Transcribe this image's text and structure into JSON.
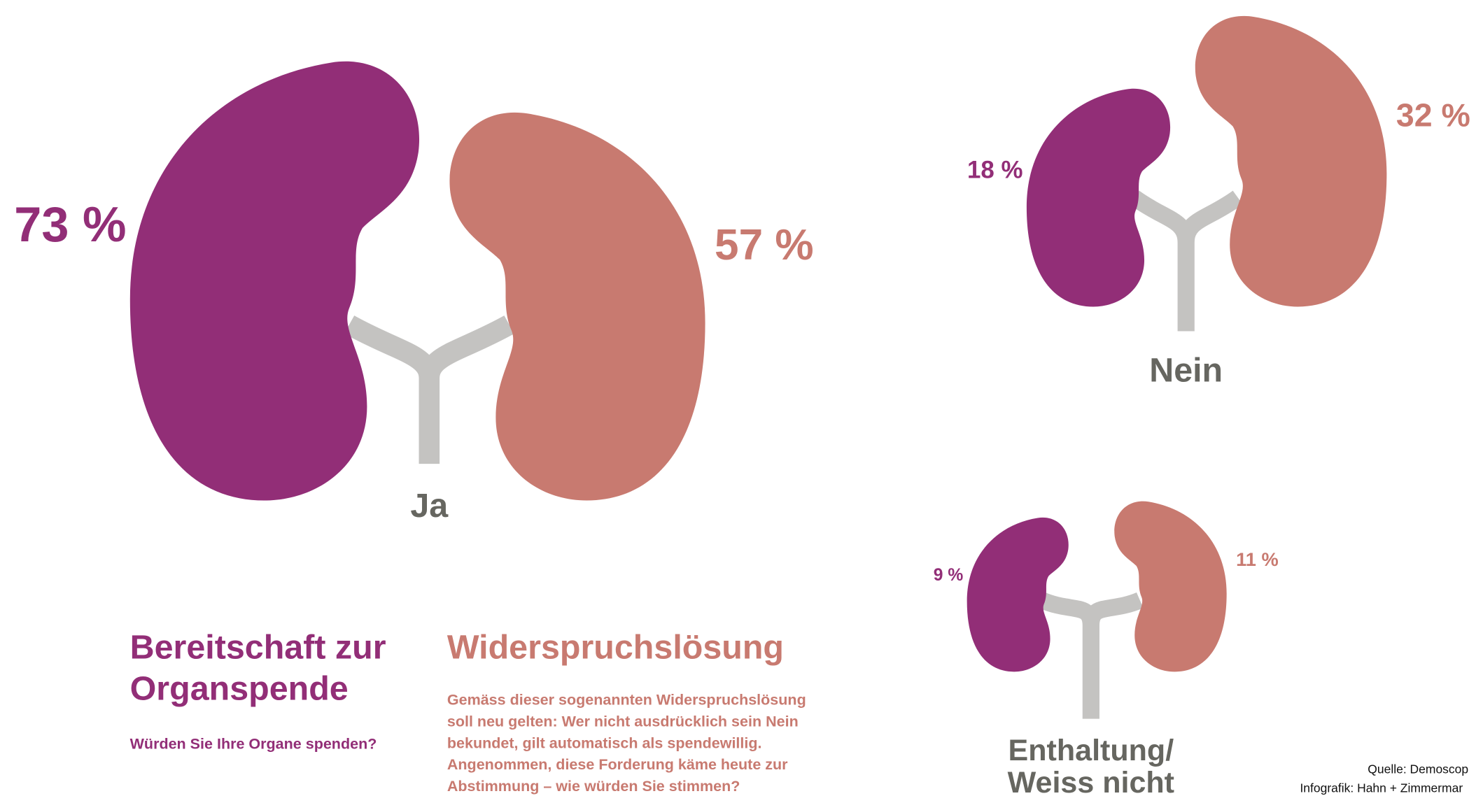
{
  "chart_data": {
    "type": "kidney",
    "categories": [
      "Ja",
      "Nein",
      "Enthaltung/\nWeiss nicht"
    ],
    "series": [
      {
        "name": "Bereitschaft zur Organspende",
        "subtitle": "Würden Sie Ihre Organe spenden?",
        "color": "#922e77",
        "values": [
          73,
          18,
          9
        ],
        "value_labels": [
          "73 %",
          "18 %",
          "9 %"
        ]
      },
      {
        "name": "Widerspruchslösung",
        "subtitle": "Gemäss dieser sogenannten Widerspruchslösung soll neu gelten: Wer nicht ausdrücklich sein Nein bekundet, gilt automatisch als spendewillig. Angenommen, diese Forderung käme heute zur Abstimmung – wie würden Sie stimmen?",
        "color": "#c87a70",
        "values": [
          57,
          32,
          11
        ],
        "value_labels": [
          "57 %",
          "32 %",
          "11 %"
        ]
      }
    ],
    "source": "Quelle: Demoscop",
    "credit": "Infografik: Hahn + Zimmermar"
  }
}
